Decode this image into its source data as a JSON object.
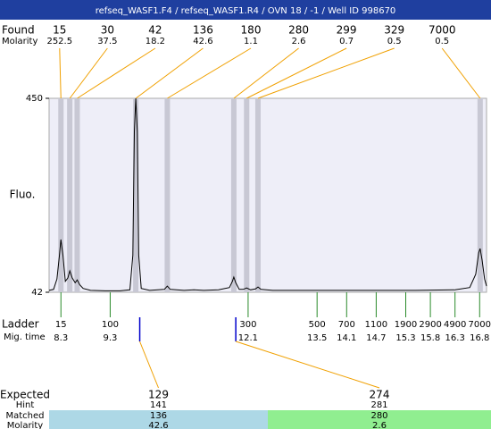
{
  "title": "refseq_WASF1.F4 / refseq_WASF1.R4 / OVN 18 / -1 / Well ID 998670",
  "found": {
    "label": "Found",
    "sizes": [
      15,
      30,
      42,
      136,
      180,
      280,
      299,
      329,
      7000
    ],
    "molarity_label": "Molarity",
    "molarity": [
      252.5,
      37.5,
      18.2,
      42.6,
      1.1,
      2.6,
      0.7,
      0.5,
      0.5
    ],
    "times": [
      8.3,
      8.48,
      8.63,
      9.82,
      10.46,
      11.81,
      12.07,
      12.3,
      16.81
    ]
  },
  "chart_data": {
    "type": "line",
    "y_label": "Fluo.",
    "ylim": [
      42,
      450
    ],
    "yticks": [
      42,
      450
    ],
    "xlim": [
      8.06,
      16.94
    ],
    "color": "#000000",
    "x": [
      8.06,
      8.15,
      8.22,
      8.27,
      8.3,
      8.34,
      8.39,
      8.44,
      8.48,
      8.53,
      8.59,
      8.63,
      8.68,
      8.75,
      8.9,
      9.2,
      9.5,
      9.7,
      9.76,
      9.79,
      9.82,
      9.85,
      9.88,
      9.93,
      10.1,
      10.4,
      10.46,
      10.52,
      10.8,
      11.0,
      11.2,
      11.5,
      11.72,
      11.78,
      11.81,
      11.85,
      11.92,
      12.0,
      12.07,
      12.15,
      12.25,
      12.3,
      12.36,
      12.6,
      13.5,
      14.5,
      15.5,
      16.3,
      16.6,
      16.72,
      16.78,
      16.81,
      16.85,
      16.9,
      16.94
    ],
    "values": [
      46,
      48,
      70,
      120,
      153,
      120,
      65,
      72,
      87,
      72,
      62,
      68,
      58,
      50,
      46,
      45,
      45,
      47,
      120,
      380,
      450,
      380,
      120,
      50,
      46,
      48,
      55,
      48,
      46,
      47,
      46,
      47,
      52,
      65,
      74,
      62,
      48,
      48,
      51,
      47,
      49,
      53,
      48,
      46,
      46,
      46,
      46,
      47,
      52,
      80,
      125,
      134,
      110,
      70,
      55
    ]
  },
  "ladder": {
    "label": "Ladder",
    "sizes": [
      15,
      100,
      300,
      500,
      700,
      1100,
      1900,
      2900,
      4900,
      7000
    ],
    "time_label": "Mig. time",
    "times": [
      8.3,
      9.3,
      12.1,
      13.5,
      14.1,
      14.7,
      15.3,
      15.8,
      16.3,
      16.8
    ]
  },
  "expected": {
    "label": "Expected",
    "sizes": [
      129,
      274
    ],
    "times": [
      9.9,
      11.85
    ],
    "hint_label": "Hint",
    "hint": [
      141,
      281
    ],
    "matched_label": "Matched",
    "matched": [
      136,
      280
    ],
    "molarity_label": "Molarity",
    "molarity": [
      42.6,
      2.6
    ]
  }
}
